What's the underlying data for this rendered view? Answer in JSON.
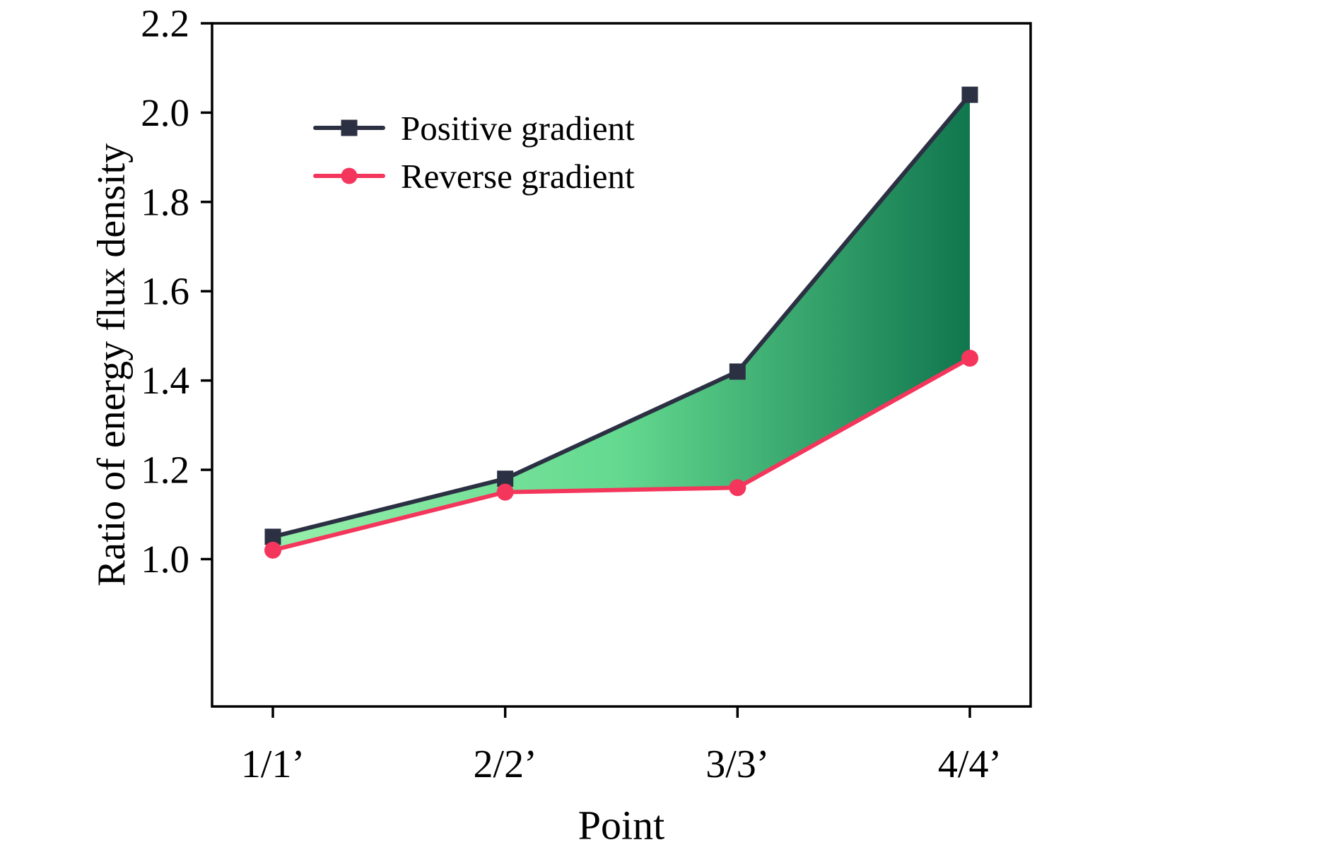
{
  "chart_data": {
    "type": "line",
    "categories": [
      "1/1’",
      "2/2’",
      "3/3’",
      "4/4’"
    ],
    "series": [
      {
        "name": "Positive gradient",
        "values": [
          1.05,
          1.18,
          1.42,
          2.04
        ],
        "color": "#2c3043",
        "marker": "square"
      },
      {
        "name": "Reverse gradient",
        "values": [
          1.02,
          1.15,
          1.16,
          1.45
        ],
        "color": "#f4365c",
        "marker": "circle"
      }
    ],
    "title": "",
    "xlabel": "Point",
    "ylabel": "Ratio of energy flux density",
    "ylim": [
      0.67,
      2.2
    ],
    "yticks": [
      1.0,
      1.2,
      1.4,
      1.6,
      1.8,
      2.0,
      2.2
    ],
    "fill_between": {
      "from": "Positive gradient",
      "to": "Reverse gradient",
      "gradient": [
        "#96efaa",
        "#63d98f",
        "#10764e"
      ]
    },
    "legend_position": "upper-left-inside",
    "grid": false
  },
  "colors": {
    "background": "#ffffff",
    "axis": "#000000"
  }
}
